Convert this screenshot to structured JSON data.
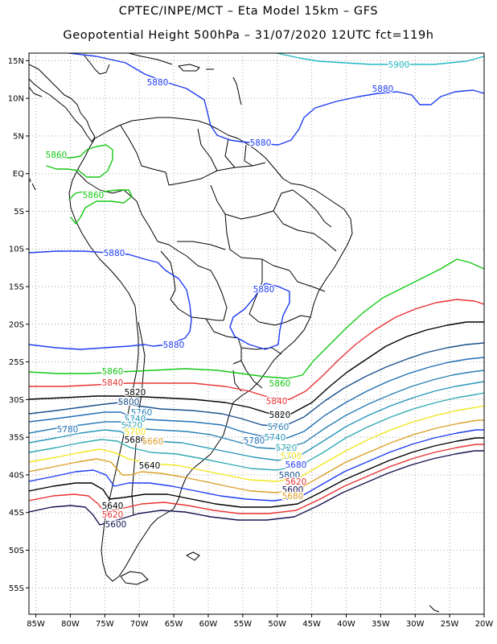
{
  "header": {
    "line1": "CPTEC/INPE/MCT –  Eta Model 15km – GFS",
    "line2": "Geopotential Height 500hPa – 31/07/2020 12UTC fct=119h"
  },
  "map": {
    "lon_range": [
      -86,
      -20
    ],
    "lat_range": [
      -58.5,
      16
    ],
    "lon_ticks": [
      "85W",
      "80W",
      "75W",
      "70W",
      "65W",
      "60W",
      "55W",
      "50W",
      "45W",
      "40W",
      "35W",
      "30W",
      "25W",
      "20W"
    ],
    "lat_ticks": [
      "15N",
      "10N",
      "5N",
      "EQ",
      "5S",
      "10S",
      "15S",
      "20S",
      "25S",
      "30S",
      "35S",
      "40S",
      "45S",
      "50S",
      "55S"
    ],
    "contours": [
      {
        "value": "5900",
        "color": "#20b8c0"
      },
      {
        "value": "5880",
        "color": "#1e3cf0"
      },
      {
        "value": "5860",
        "color": "#14c814"
      },
      {
        "value": "5840",
        "color": "#e83232"
      },
      {
        "value": "5820",
        "color": "#000000"
      },
      {
        "value": "5800",
        "color": "#1a4f8c"
      },
      {
        "value": "5780",
        "color": "#1f6eb4"
      },
      {
        "value": "5760",
        "color": "#2a80b4"
      },
      {
        "value": "5740",
        "color": "#2896b9"
      },
      {
        "value": "5720",
        "color": "#32aab4"
      },
      {
        "value": "5700",
        "color": "#f0e61e"
      },
      {
        "value": "5680",
        "color": "#dca028"
      },
      {
        "value": "5660",
        "color": "#1e3cf0"
      },
      {
        "value": "5640",
        "color": "#000000"
      },
      {
        "value": "5620",
        "color": "#e83232"
      },
      {
        "value": "5600",
        "color": "#141450"
      }
    ],
    "labels": [
      {
        "text": "5900",
        "color": "#20b8c0"
      },
      {
        "text": "5880",
        "color": "#1e3cf0"
      },
      {
        "text": "5880",
        "color": "#1e3cf0"
      },
      {
        "text": "5880",
        "color": "#1e3cf0"
      },
      {
        "text": "5860",
        "color": "#14c814"
      },
      {
        "text": "5860",
        "color": "#14c814"
      },
      {
        "text": "5880",
        "color": "#1e3cf0"
      },
      {
        "text": "5880",
        "color": "#1e3cf0"
      },
      {
        "text": "5880",
        "color": "#1e3cf0"
      },
      {
        "text": "5860",
        "color": "#14c814"
      },
      {
        "text": "5860",
        "color": "#14c814"
      },
      {
        "text": "5840",
        "color": "#e83232"
      },
      {
        "text": "5820",
        "color": "#000000"
      },
      {
        "text": "5800",
        "color": "#1a4f8c"
      },
      {
        "text": "5840",
        "color": "#e83232"
      },
      {
        "text": "5820",
        "color": "#000000"
      },
      {
        "text": "5780",
        "color": "#1f6eb4"
      },
      {
        "text": "5760",
        "color": "#2a80b4"
      },
      {
        "text": "5740",
        "color": "#2896b9"
      },
      {
        "text": "5720",
        "color": "#32aab4"
      },
      {
        "text": "5700",
        "color": "#f0e61e"
      },
      {
        "text": "5680",
        "color": "#1e3cf0"
      },
      {
        "text": "5800",
        "color": "#1a4f8c"
      },
      {
        "text": "5780",
        "color": "#1f6eb4"
      },
      {
        "text": "5760",
        "color": "#2a80b4"
      },
      {
        "text": "5740",
        "color": "#2896b9"
      },
      {
        "text": "5720",
        "color": "#32aab4"
      },
      {
        "text": "5700",
        "color": "#f0e61e"
      },
      {
        "text": "5680",
        "color": "#000000"
      },
      {
        "text": "5660",
        "color": "#dca028"
      },
      {
        "text": "5640",
        "color": "#000000"
      },
      {
        "text": "5620",
        "color": "#e83232"
      },
      {
        "text": "5600",
        "color": "#141450"
      },
      {
        "text": "5680",
        "color": "#dca028"
      },
      {
        "text": "5640",
        "color": "#000000"
      },
      {
        "text": "5620",
        "color": "#e83232"
      },
      {
        "text": "5600",
        "color": "#141450"
      }
    ]
  }
}
